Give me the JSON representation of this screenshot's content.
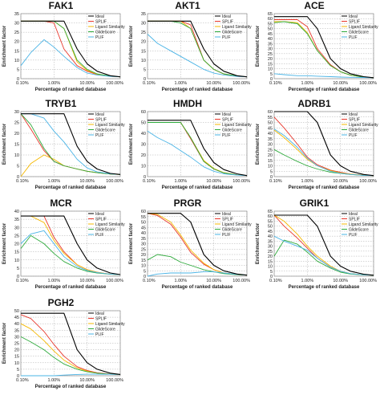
{
  "figure": {
    "xlabel": "Percentage of ranked database",
    "ylabel": "Enrichment factor",
    "x_ticks": [
      "0.10%",
      "1.00%",
      "10.00%",
      "100.00%"
    ],
    "legend": [
      "Ideal",
      "SPLIF",
      "Ligand Similarity",
      "GlideScore",
      "PLIF"
    ],
    "colors": {
      "Ideal": "#000000",
      "SPLIF": "#e8362b",
      "Ligand Similarity": "#f5b800",
      "GlideScore": "#2eaa3c",
      "PLIF": "#4ab4e6"
    }
  },
  "chart_data": [
    {
      "type": "line",
      "title": "FAK1",
      "xscale": "log",
      "xlim": [
        0.1,
        100
      ],
      "ylim": [
        0,
        35
      ],
      "yticks": [
        0,
        5,
        10,
        15,
        20,
        25,
        30,
        35
      ],
      "x": [
        0.1,
        0.2,
        0.5,
        1,
        2,
        5,
        10,
        20,
        50,
        100
      ],
      "series": [
        {
          "name": "Ideal",
          "values": [
            31,
            31,
            31,
            31,
            31,
            16,
            8,
            4,
            1.6,
            1
          ]
        },
        {
          "name": "SPLIF",
          "values": [
            31,
            31,
            31,
            30,
            16,
            7,
            4,
            2.2,
            1.3,
            1
          ]
        },
        {
          "name": "Ligand Similarity",
          "values": [
            31,
            31,
            31,
            31,
            27,
            9,
            4.5,
            2.4,
            1.3,
            1
          ]
        },
        {
          "name": "GlideScore",
          "values": [
            31,
            31,
            31,
            31,
            27,
            10,
            5,
            2.6,
            1.4,
            1
          ]
        },
        {
          "name": "PLIF",
          "values": [
            7,
            14,
            21,
            17,
            12,
            6,
            3,
            2,
            1.2,
            1
          ]
        }
      ]
    },
    {
      "type": "line",
      "title": "AKT1",
      "xscale": "log",
      "xlim": [
        0.1,
        100
      ],
      "ylim": [
        0,
        35
      ],
      "yticks": [
        0,
        5,
        10,
        15,
        20,
        25,
        30,
        35
      ],
      "x": [
        0.1,
        0.2,
        0.5,
        1,
        2,
        5,
        10,
        20,
        50,
        100
      ],
      "series": [
        {
          "name": "Ideal",
          "values": [
            31,
            31,
            31,
            31,
            31,
            16,
            8,
            4,
            1.6,
            1
          ]
        },
        {
          "name": "SPLIF",
          "values": [
            31,
            31,
            31,
            31,
            29,
            10,
            5,
            2.5,
            1.3,
            1
          ]
        },
        {
          "name": "Ligand Similarity",
          "values": [
            31,
            31,
            31,
            31,
            27,
            10,
            5,
            2.6,
            1.4,
            1
          ]
        },
        {
          "name": "GlideScore",
          "values": [
            31,
            31,
            31,
            30,
            27,
            10,
            5,
            2.6,
            1.4,
            1
          ]
        },
        {
          "name": "PLIF",
          "values": [
            24,
            19,
            15,
            12,
            9,
            5,
            3,
            2,
            1.2,
            1
          ]
        }
      ]
    },
    {
      "type": "line",
      "title": "ACE",
      "xscale": "log",
      "xlim": [
        0.1,
        100
      ],
      "ylim": [
        0,
        65
      ],
      "yticks": [
        0,
        5,
        10,
        15,
        20,
        25,
        30,
        35,
        40,
        45,
        50,
        55,
        60,
        65
      ],
      "x": [
        0.1,
        0.2,
        0.5,
        1,
        2,
        5,
        10,
        20,
        50,
        100
      ],
      "series": [
        {
          "name": "Ideal",
          "values": [
            62,
            62,
            62,
            62,
            50,
            20,
            10,
            5,
            2,
            1
          ]
        },
        {
          "name": "SPLIF",
          "values": [
            59,
            59,
            59,
            52,
            30,
            14,
            7,
            3.5,
            1.6,
            1
          ]
        },
        {
          "name": "Ligand Similarity",
          "values": [
            57,
            57,
            56,
            46,
            28,
            13,
            7,
            3.5,
            1.6,
            1
          ]
        },
        {
          "name": "GlideScore",
          "values": [
            56,
            57,
            55,
            45,
            28,
            13,
            7,
            3.5,
            1.6,
            1
          ]
        },
        {
          "name": "PLIF",
          "values": [
            5,
            4,
            3,
            3,
            2.5,
            2,
            1.6,
            1.4,
            1.2,
            1
          ]
        }
      ]
    },
    {
      "type": "line",
      "title": "TRYB1",
      "xscale": "log",
      "xlim": [
        0.1,
        100
      ],
      "ylim": [
        0,
        30
      ],
      "yticks": [
        0,
        5,
        10,
        15,
        20,
        25,
        30
      ],
      "x": [
        0.1,
        0.2,
        0.5,
        1,
        2,
        5,
        10,
        20,
        50,
        100
      ],
      "series": [
        {
          "name": "Ideal",
          "values": [
            29,
            29,
            29,
            29,
            29,
            14,
            7,
            3.5,
            1.5,
            1
          ]
        },
        {
          "name": "SPLIF",
          "values": [
            29,
            22,
            12,
            7,
            5,
            3.5,
            2.5,
            1.8,
            1.2,
            1
          ]
        },
        {
          "name": "Ligand Similarity",
          "values": [
            0,
            6,
            10,
            8,
            5,
            3.5,
            2.5,
            1.8,
            1.2,
            1
          ]
        },
        {
          "name": "GlideScore",
          "values": [
            29,
            24,
            13,
            7,
            5,
            3.5,
            2.5,
            1.8,
            1.2,
            1
          ]
        },
        {
          "name": "PLIF",
          "values": [
            29,
            29,
            27,
            21,
            16,
            8,
            4,
            2.2,
            1.3,
            1
          ]
        }
      ]
    },
    {
      "type": "line",
      "title": "HMDH",
      "xscale": "log",
      "xlim": [
        0.1,
        100
      ],
      "ylim": [
        0,
        60
      ],
      "yticks": [
        0,
        10,
        20,
        30,
        40,
        50,
        60
      ],
      "x": [
        0.1,
        0.2,
        0.5,
        1,
        2,
        5,
        10,
        20,
        50,
        100
      ],
      "series": [
        {
          "name": "Ideal",
          "values": [
            52,
            52,
            52,
            52,
            52,
            26,
            13,
            6.5,
            2.6,
            1
          ]
        },
        {
          "name": "SPLIF",
          "values": [
            50,
            50,
            50,
            50,
            35,
            14,
            7,
            3.5,
            1.6,
            1
          ]
        },
        {
          "name": "Ligand Similarity",
          "values": [
            50,
            50,
            50,
            50,
            36,
            15,
            7.5,
            3.7,
            1.6,
            1
          ]
        },
        {
          "name": "GlideScore",
          "values": [
            50,
            50,
            50,
            50,
            36,
            14,
            7,
            3.5,
            1.6,
            1
          ]
        },
        {
          "name": "PLIF",
          "values": [
            42,
            36,
            30,
            24,
            18,
            9,
            5,
            2.6,
            1.4,
            1
          ]
        }
      ]
    },
    {
      "type": "line",
      "title": "ADRB1",
      "xscale": "log",
      "xlim": [
        0.1,
        100
      ],
      "ylim": [
        0,
        60
      ],
      "yticks": [
        0,
        5,
        10,
        15,
        20,
        25,
        30,
        35,
        40,
        45,
        50,
        55,
        60
      ],
      "x": [
        0.1,
        0.2,
        0.5,
        1,
        2,
        5,
        10,
        20,
        50,
        100
      ],
      "series": [
        {
          "name": "Ideal",
          "values": [
            60,
            60,
            60,
            60,
            50,
            20,
            10,
            5,
            2,
            1
          ]
        },
        {
          "name": "SPLIF",
          "values": [
            55,
            45,
            30,
            18,
            11,
            6,
            4,
            2.4,
            1.3,
            1
          ]
        },
        {
          "name": "Ligand Similarity",
          "values": [
            43,
            36,
            25,
            16,
            10,
            5.5,
            3.5,
            2.2,
            1.3,
            1
          ]
        },
        {
          "name": "GlideScore",
          "values": [
            25,
            20,
            14,
            10,
            7,
            4,
            3,
            2,
            1.2,
            1
          ]
        },
        {
          "name": "PLIF",
          "values": [
            44,
            38,
            27,
            17,
            10,
            5,
            3,
            2,
            1.2,
            1
          ]
        }
      ]
    },
    {
      "type": "line",
      "title": "MCR",
      "xscale": "log",
      "xlim": [
        0.1,
        100
      ],
      "ylim": [
        0,
        40
      ],
      "yticks": [
        0,
        5,
        10,
        15,
        20,
        25,
        30,
        35,
        40
      ],
      "x": [
        0.1,
        0.2,
        0.5,
        1,
        2,
        5,
        10,
        20,
        50,
        100
      ],
      "series": [
        {
          "name": "Ideal",
          "values": [
            37,
            37,
            37,
            37,
            37,
            20,
            10,
            5,
            2,
            1
          ]
        },
        {
          "name": "SPLIF",
          "values": [
            37,
            37,
            37,
            24,
            15,
            7,
            4,
            2.4,
            1.3,
            1
          ]
        },
        {
          "name": "Ligand Similarity",
          "values": [
            37,
            37,
            33,
            22,
            14,
            7,
            4,
            2.4,
            1.3,
            1
          ]
        },
        {
          "name": "GlideScore",
          "values": [
            17,
            25,
            20,
            14,
            9,
            5,
            3,
            2,
            1.2,
            1
          ]
        },
        {
          "name": "PLIF",
          "values": [
            20,
            26,
            28,
            20,
            12,
            6,
            3.5,
            2.2,
            1.3,
            1
          ]
        }
      ]
    },
    {
      "type": "line",
      "title": "PRGR",
      "xscale": "log",
      "xlim": [
        0.1,
        100
      ],
      "ylim": [
        0,
        60
      ],
      "yticks": [
        0,
        5,
        10,
        15,
        20,
        25,
        30,
        35,
        40,
        45,
        50,
        55,
        60
      ],
      "x": [
        0.1,
        0.2,
        0.5,
        1,
        2,
        5,
        10,
        20,
        50,
        100
      ],
      "series": [
        {
          "name": "Ideal",
          "values": [
            58,
            58,
            58,
            58,
            50,
            20,
            10,
            5,
            2,
            1
          ]
        },
        {
          "name": "SPLIF",
          "values": [
            58,
            56,
            48,
            36,
            22,
            11,
            6,
            3,
            1.5,
            1
          ]
        },
        {
          "name": "Ligand Similarity",
          "values": [
            58,
            57,
            50,
            38,
            24,
            12,
            6,
            3,
            1.5,
            1
          ]
        },
        {
          "name": "GlideScore",
          "values": [
            15,
            20,
            18,
            13,
            10,
            6,
            4,
            2.4,
            1.3,
            1
          ]
        },
        {
          "name": "PLIF",
          "values": [
            0,
            2,
            3,
            3,
            3,
            4,
            4,
            3,
            1.6,
            1
          ]
        }
      ]
    },
    {
      "type": "line",
      "title": "GRIK1",
      "xscale": "log",
      "xlim": [
        0.1,
        100
      ],
      "ylim": [
        0,
        65
      ],
      "yticks": [
        0,
        5,
        10,
        15,
        20,
        25,
        30,
        35,
        40,
        45,
        50,
        55,
        60,
        65
      ],
      "x": [
        0.1,
        0.2,
        0.5,
        1,
        2,
        5,
        10,
        20,
        50,
        100
      ],
      "series": [
        {
          "name": "Ideal",
          "values": [
            61,
            61,
            61,
            61,
            50,
            20,
            10,
            5,
            2,
            1
          ]
        },
        {
          "name": "SPLIF",
          "values": [
            61,
            50,
            38,
            28,
            18,
            9,
            5,
            2.6,
            1.4,
            1
          ]
        },
        {
          "name": "Ligand Similarity",
          "values": [
            61,
            55,
            42,
            30,
            20,
            10,
            5,
            2.6,
            1.4,
            1
          ]
        },
        {
          "name": "GlideScore",
          "values": [
            20,
            36,
            32,
            24,
            15,
            8,
            4,
            2.2,
            1.3,
            1
          ]
        },
        {
          "name": "PLIF",
          "values": [
            40,
            35,
            30,
            26,
            18,
            9,
            5,
            2.6,
            1.4,
            1
          ]
        }
      ]
    },
    {
      "type": "line",
      "title": "PGH2",
      "xscale": "log",
      "xlim": [
        0.1,
        100
      ],
      "ylim": [
        0,
        50
      ],
      "yticks": [
        0,
        5,
        10,
        15,
        20,
        25,
        30,
        35,
        40,
        45,
        50
      ],
      "x": [
        0.1,
        0.2,
        0.5,
        1,
        2,
        5,
        10,
        20,
        50,
        100
      ],
      "series": [
        {
          "name": "Ideal",
          "values": [
            48,
            48,
            48,
            48,
            48,
            20,
            10,
            5,
            2,
            1
          ]
        },
        {
          "name": "SPLIF",
          "values": [
            47,
            44,
            34,
            24,
            15,
            7,
            4,
            2.3,
            1.3,
            1
          ]
        },
        {
          "name": "Ligand Similarity",
          "values": [
            40,
            36,
            27,
            19,
            12,
            6,
            3.5,
            2,
            1.2,
            1
          ]
        },
        {
          "name": "GlideScore",
          "values": [
            30,
            26,
            20,
            14,
            9,
            5,
            3,
            2,
            1.2,
            1
          ]
        },
        {
          "name": "PLIF",
          "values": [
            0,
            0,
            0,
            0,
            0.5,
            1,
            1.2,
            1.2,
            1.1,
            1
          ]
        }
      ]
    }
  ]
}
